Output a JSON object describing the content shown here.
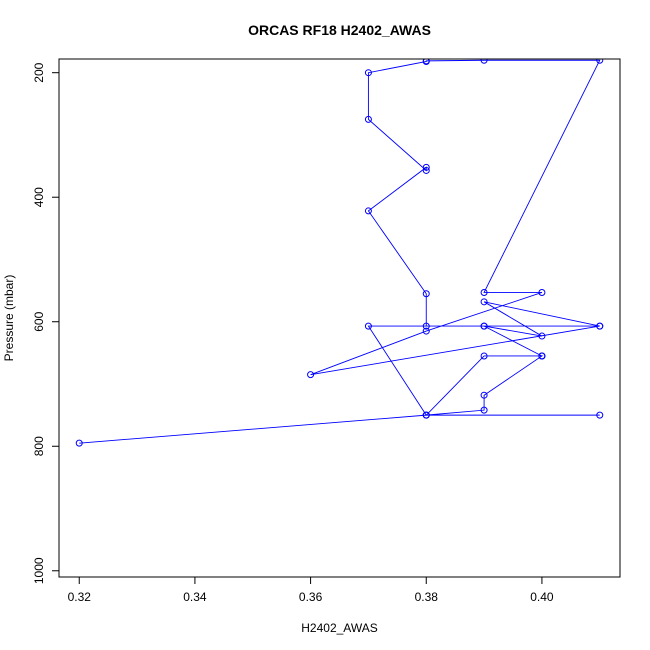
{
  "chart_data": {
    "type": "line",
    "title": "ORCAS RF18 H2402_AWAS",
    "xlabel": "H2402_AWAS",
    "ylabel": "Pressure (mbar)",
    "xlim": [
      0.3165,
      0.4135
    ],
    "ylim": [
      1010,
      178
    ],
    "y_reversed": true,
    "xticks": [
      0.32,
      0.34,
      0.36,
      0.38,
      0.4
    ],
    "yticks": [
      200,
      400,
      600,
      800,
      1000
    ],
    "grid": false,
    "legend": "none",
    "series": [
      {
        "color": "#0000ff",
        "marker": "open-circle",
        "x": [
          0.32,
          0.38,
          0.41,
          0.38,
          0.39,
          0.39,
          0.4,
          0.4,
          0.39,
          0.38,
          0.37,
          0.41,
          0.39,
          0.38,
          0.38,
          0.37,
          0.38,
          0.38,
          0.37,
          0.37,
          0.38,
          0.38,
          0.39,
          0.41,
          0.39,
          0.4,
          0.38,
          0.36,
          0.41,
          0.39,
          0.4,
          0.39,
          0.4
        ],
        "y": [
          795,
          750,
          750,
          750,
          742,
          718,
          655,
          655,
          655,
          750,
          607,
          607,
          607,
          607,
          555,
          422,
          352,
          357,
          275,
          200,
          182,
          181,
          180,
          180,
          553,
          553,
          615,
          685,
          607,
          568,
          623,
          607,
          655
        ]
      }
    ]
  }
}
